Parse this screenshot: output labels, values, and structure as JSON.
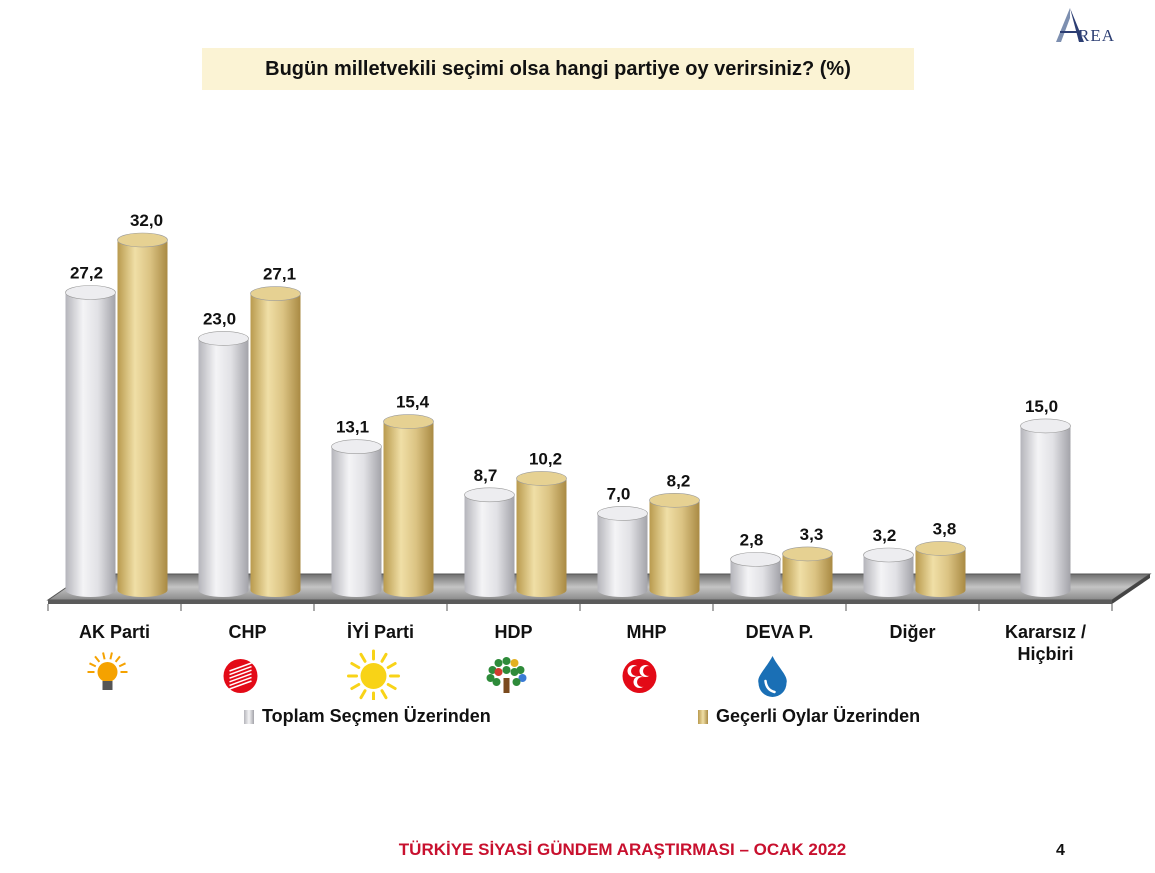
{
  "header": {
    "logo_text": "AREA",
    "title": "Bugün milletvekili seçimi olsa hangi partiye oy verirsiniz? (%)"
  },
  "chart_data": {
    "type": "bar",
    "title": "Bugün milletvekili seçimi olsa hangi partiye oy verirsiniz? (%)",
    "categories": [
      "AK Parti",
      "CHP",
      "İYİ Parti",
      "HDP",
      "MHP",
      "DEVA P.",
      "Diğer",
      "Kararsız / Hiçbiri"
    ],
    "category_lines": [
      [
        "AK Parti"
      ],
      [
        "CHP"
      ],
      [
        "İYİ Parti"
      ],
      [
        "HDP"
      ],
      [
        "MHP"
      ],
      [
        "DEVA P."
      ],
      [
        "Diğer"
      ],
      [
        "Kararsız /",
        "Hiçbiri"
      ]
    ],
    "series": [
      {
        "name": "Toplam Seçmen Üzerinden",
        "values": [
          27.2,
          23.0,
          13.1,
          8.7,
          7.0,
          2.8,
          3.2,
          15.0
        ],
        "labels": [
          "27,2",
          "23,0",
          "13,1",
          "8,7",
          "7,0",
          "2,8",
          "3,2",
          "15,0"
        ],
        "color": "#e2e2e6"
      },
      {
        "name": "Geçerli Oylar Üzerinden",
        "values": [
          32.0,
          27.1,
          15.4,
          10.2,
          8.2,
          3.3,
          3.8,
          null
        ],
        "labels": [
          "32,0",
          "27,1",
          "15,4",
          "10,2",
          "8,2",
          "3,3",
          "3,8",
          ""
        ],
        "color": "#dcc68a"
      }
    ],
    "ylim": [
      0,
      32
    ],
    "grid": false,
    "legend_position": "bottom",
    "xlabel": "",
    "ylabel": "",
    "party_icons": [
      {
        "name": "lightbulb-icon",
        "color": "#f5a200"
      },
      {
        "name": "six-arrows-icon",
        "color": "#e30a17"
      },
      {
        "name": "sun-icon",
        "color": "#f8d317"
      },
      {
        "name": "tree-icon",
        "color": "#2e8b3a"
      },
      {
        "name": "three-crescents-icon",
        "color": "#e30a17"
      },
      {
        "name": "water-drop-icon",
        "color": "#1a6fb5"
      },
      {
        "name": "",
        "color": ""
      },
      {
        "name": "",
        "color": ""
      }
    ]
  },
  "footer": {
    "title": "TÜRKİYE SİYASİ GÜNDEM ARAŞTIRMASI – OCAK 2022",
    "page_number": "4"
  }
}
